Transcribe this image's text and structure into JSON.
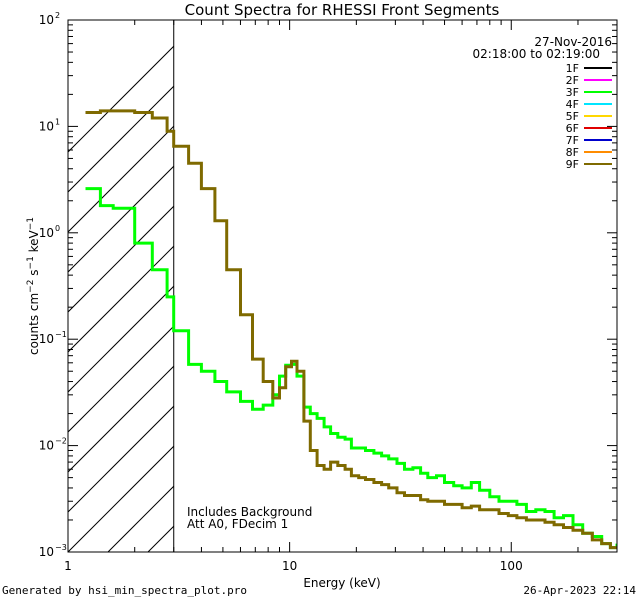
{
  "chart_data": {
    "type": "line",
    "title": "Count Spectra for RHESSI Front Segments",
    "xlabel": "Energy (keV)",
    "ylabel": "counts cm⁻² s⁻¹ keV⁻¹",
    "ylabel_parts": {
      "base": "counts cm",
      "exp1": "−2",
      "mid": " s",
      "exp2": "−1",
      "tail": " keV",
      "exp3": "−1"
    },
    "xscale": "log",
    "yscale": "log",
    "xlim": [
      1,
      300
    ],
    "ylim": [
      0.001,
      100
    ],
    "x_ticks": [
      {
        "value": 1,
        "label": "1"
      },
      {
        "value": 10,
        "label": "10"
      },
      {
        "value": 100,
        "label": "100"
      }
    ],
    "y_ticks": [
      {
        "value": 0.001,
        "base": "10",
        "exp": "−3"
      },
      {
        "value": 0.01,
        "base": "10",
        "exp": "−2"
      },
      {
        "value": 0.1,
        "base": "10",
        "exp": "−1"
      },
      {
        "value": 1,
        "base": "10",
        "exp": "0"
      },
      {
        "value": 10,
        "base": "10",
        "exp": "1"
      },
      {
        "value": 100,
        "base": "10",
        "exp": "2"
      }
    ],
    "date": "27-Nov-2016",
    "time_range": "02:18:00 to 02:19:00",
    "legend_position": "top-right",
    "legend": [
      {
        "label": "1F",
        "color": "#000000"
      },
      {
        "label": "2F",
        "color": "#ff00ff"
      },
      {
        "label": "3F",
        "color": "#00ff00"
      },
      {
        "label": "4F",
        "color": "#00e5ff"
      },
      {
        "label": "5F",
        "color": "#ffd700"
      },
      {
        "label": "6F",
        "color": "#e00000"
      },
      {
        "label": "7F",
        "color": "#0000cc"
      },
      {
        "label": "8F",
        "color": "#ff8c00"
      },
      {
        "label": "9F",
        "color": "#7f6a00"
      }
    ],
    "shaded_region": {
      "x_min": 1,
      "x_max": 3,
      "style": "diagonal-hatch",
      "description": "attenuator/threshold region"
    },
    "annotations": [
      "Includes Background",
      "Att A0, FDecim 1"
    ],
    "series": [
      {
        "name": "3F",
        "color": "#00ff00",
        "x": [
          1.2,
          1.4,
          1.6,
          2.0,
          2.4,
          2.8,
          3.0,
          3.5,
          4.0,
          4.6,
          5.2,
          6.0,
          6.8,
          7.6,
          8.4,
          9.0,
          9.6,
          10.2,
          10.8,
          11.6,
          12.4,
          13.3,
          14.3,
          15.3,
          16.5,
          17.8,
          19.0,
          20.5,
          22.0,
          24.0,
          26.0,
          28.0,
          30.5,
          33.0,
          36.0,
          39.0,
          42.0,
          46.0,
          50.0,
          55.0,
          60.0,
          66.0,
          72.0,
          80.0,
          88.0,
          97.0,
          106.0,
          117.0,
          129.0,
          142.0,
          156.0,
          172.0,
          190.0,
          210.0,
          232.0,
          256.0,
          280.0,
          300.0
        ],
        "y": [
          2.6,
          1.8,
          1.7,
          0.8,
          0.45,
          0.25,
          0.12,
          0.058,
          0.05,
          0.04,
          0.032,
          0.026,
          0.022,
          0.024,
          0.03,
          0.045,
          0.057,
          0.058,
          0.045,
          0.023,
          0.02,
          0.018,
          0.015,
          0.013,
          0.012,
          0.0115,
          0.0095,
          0.0095,
          0.009,
          0.0085,
          0.008,
          0.0075,
          0.0068,
          0.006,
          0.0062,
          0.0055,
          0.005,
          0.0052,
          0.0045,
          0.0042,
          0.004,
          0.0045,
          0.0038,
          0.0033,
          0.003,
          0.003,
          0.0028,
          0.0024,
          0.0025,
          0.0024,
          0.0021,
          0.0022,
          0.0018,
          0.0015,
          0.0014,
          0.0012,
          0.0011,
          0.0012
        ]
      },
      {
        "name": "9F",
        "color": "#7f6a00",
        "x": [
          1.2,
          1.4,
          1.6,
          2.0,
          2.4,
          2.8,
          3.0,
          3.5,
          4.0,
          4.6,
          5.2,
          6.0,
          6.8,
          7.6,
          8.4,
          9.0,
          9.6,
          10.2,
          10.8,
          11.6,
          12.4,
          13.3,
          14.3,
          15.3,
          16.5,
          17.8,
          19.0,
          20.5,
          22.0,
          24.0,
          26.0,
          28.0,
          30.5,
          33.0,
          36.0,
          39.0,
          42.0,
          46.0,
          50.0,
          55.0,
          60.0,
          66.0,
          72.0,
          80.0,
          88.0,
          97.0,
          106.0,
          117.0,
          129.0,
          142.0,
          156.0,
          172.0,
          190.0,
          210.0,
          232.0,
          256.0,
          280.0,
          300.0
        ],
        "y": [
          13.5,
          14.0,
          14.0,
          13.5,
          12.0,
          9.0,
          6.5,
          4.5,
          2.6,
          1.3,
          0.45,
          0.17,
          0.065,
          0.04,
          0.028,
          0.035,
          0.055,
          0.062,
          0.05,
          0.017,
          0.009,
          0.0065,
          0.006,
          0.007,
          0.0065,
          0.006,
          0.0052,
          0.005,
          0.0048,
          0.0045,
          0.0043,
          0.004,
          0.0036,
          0.0034,
          0.0034,
          0.0031,
          0.003,
          0.003,
          0.0028,
          0.0028,
          0.0026,
          0.0027,
          0.0025,
          0.0025,
          0.0023,
          0.0022,
          0.0021,
          0.002,
          0.002,
          0.0019,
          0.0018,
          0.0017,
          0.0016,
          0.0015,
          0.0013,
          0.0012,
          0.0011,
          0.0011
        ]
      }
    ]
  },
  "footer": {
    "generated_by": "Generated by hsi_min_spectra_plot.pro",
    "timestamp": "26-Apr-2023 22:14"
  }
}
